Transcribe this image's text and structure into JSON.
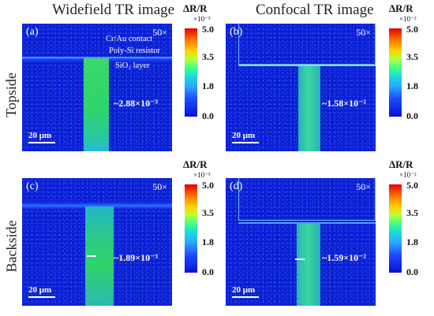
{
  "columns": [
    "Widefield TR image",
    "Confocal TR image"
  ],
  "rows": [
    "Topside",
    "Backside"
  ],
  "panels": [
    {
      "label": "(a)",
      "mag": "50×",
      "value": "~2.88×10⁻³",
      "scale": "20 μm",
      "notes": [
        "Cr/Au contact",
        "Poly-Si resistor",
        "SiO₂ layer"
      ]
    },
    {
      "label": "(b)",
      "mag": "50×",
      "value": "~1.58×10⁻²",
      "scale": "20 μm"
    },
    {
      "label": "(c)",
      "mag": "50×",
      "value": "~1.89×10⁻³",
      "scale": "20 μm"
    },
    {
      "label": "(d)",
      "mag": "50×",
      "value": "~1.59×10⁻²",
      "scale": "20 μm"
    }
  ],
  "colorbars": [
    {
      "title": "ΔR/R",
      "exp": "×10⁻³",
      "ticks": [
        "5.0",
        "3.5",
        "1.8",
        "0.0"
      ]
    },
    {
      "title": "ΔR/R",
      "exp": "×10⁻²",
      "ticks": [
        "5.0",
        "3.5",
        "1.8",
        "0.0"
      ]
    },
    {
      "title": "ΔR/R",
      "exp": "×10⁻³",
      "ticks": [
        "5.0",
        "3.5",
        "1.8",
        "0.0"
      ]
    },
    {
      "title": "ΔR/R",
      "exp": "×10⁻²",
      "ticks": [
        "5.0",
        "3.5",
        "1.8",
        "0.0"
      ]
    }
  ],
  "colors": {
    "background_blue": "#0c1fd6",
    "resistor_green": "#2fd46a",
    "resistor_teal": "#25c4b8"
  }
}
